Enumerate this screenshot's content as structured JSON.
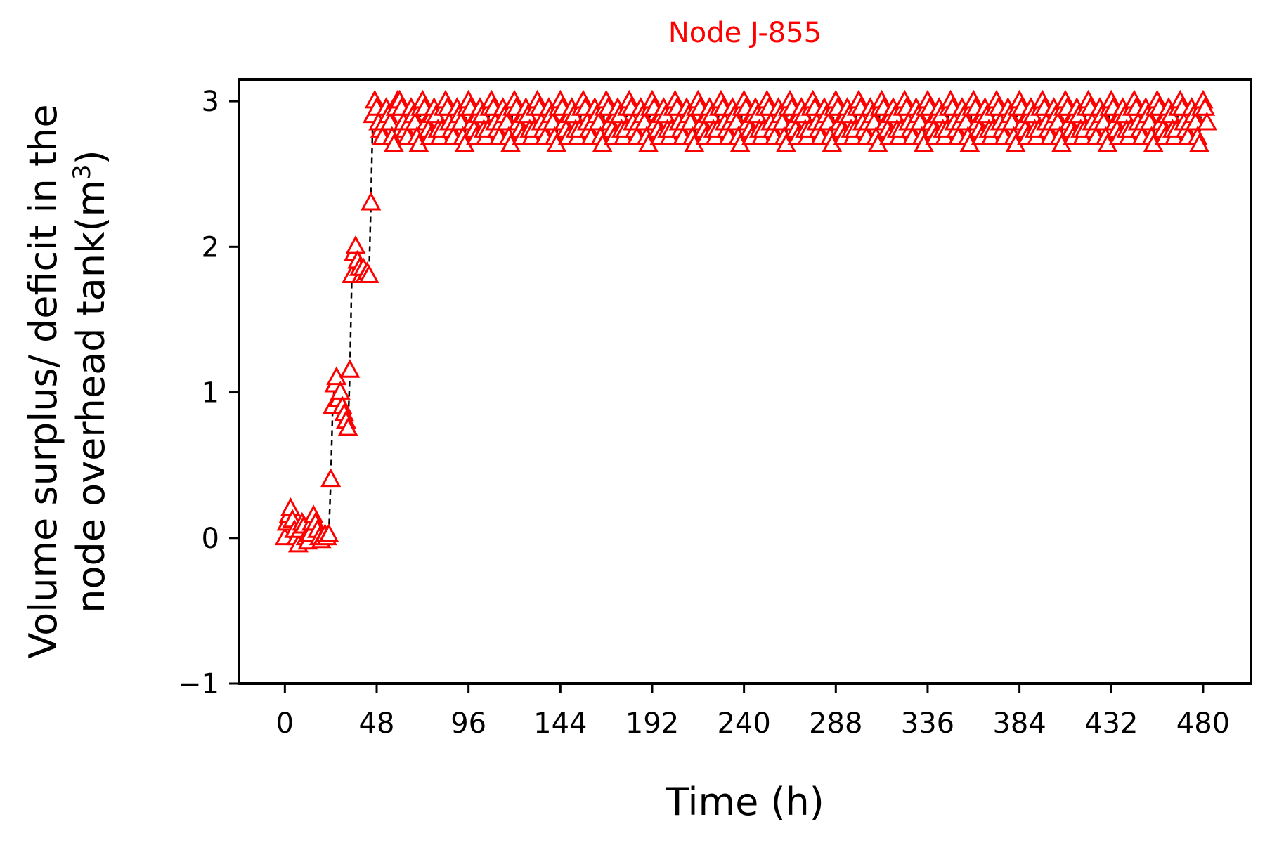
{
  "chart_data": {
    "type": "scatter",
    "title": "Node J-855",
    "title_color": "#ff0000",
    "marker": "triangle-open",
    "marker_color": "#ff0000",
    "line_style": "dashed",
    "line_color": "#000000",
    "xlabel": "Time (h)",
    "ylabel_line1": "Volume surplus/ deficit in the",
    "ylabel_line2": "node overhead tank(m",
    "ylabel_sup": "3",
    "ylabel_close": ")",
    "xlim": [
      -24,
      505
    ],
    "ylim": [
      -1,
      3.15
    ],
    "xticks": [
      0,
      48,
      96,
      144,
      192,
      240,
      288,
      336,
      384,
      432,
      480
    ],
    "xtick_labels": [
      "0",
      "48",
      "96",
      "144",
      "192",
      "240",
      "288",
      "336",
      "384",
      "432",
      "480"
    ],
    "yticks": [
      -1,
      0,
      1,
      2,
      3
    ],
    "ytick_labels": [
      "−1",
      "0",
      "1",
      "2",
      "3"
    ],
    "grid": false,
    "series": [
      {
        "x": [
          0,
          1,
          2,
          3,
          4,
          5,
          6,
          7,
          8,
          9,
          10,
          11,
          12,
          13,
          14,
          15,
          16,
          17,
          18,
          19,
          20,
          21,
          22,
          23,
          24,
          25,
          26,
          27,
          28,
          29,
          30,
          31,
          32,
          33,
          34,
          35,
          36,
          37,
          38,
          39,
          40,
          41,
          42,
          43,
          44,
          45,
          46,
          47,
          48,
          49,
          50,
          51,
          52,
          53,
          54,
          55,
          56,
          57,
          58,
          59
        ],
        "y": [
          0.0,
          0.1,
          0.15,
          0.2,
          0.12,
          0.05,
          0.0,
          -0.05,
          0.05,
          0.1,
          0.08,
          0.0,
          -0.03,
          0.02,
          0.1,
          0.15,
          0.1,
          0.05,
          0.0,
          -0.02,
          0.0,
          0.02,
          0.0,
          0.02,
          0.4,
          0.9,
          1.05,
          1.1,
          0.95,
          1.0,
          0.9,
          0.85,
          0.8,
          0.75,
          1.15,
          1.8,
          1.95,
          2.0,
          1.9,
          1.85,
          1.8,
          1.85,
          1.8,
          1.82,
          1.8,
          2.3,
          2.9,
          3.0,
          2.95,
          2.85,
          2.8,
          2.75,
          2.85,
          2.95,
          2.9,
          2.85,
          2.75,
          2.7,
          2.95,
          3.0
        ]
      }
    ]
  }
}
